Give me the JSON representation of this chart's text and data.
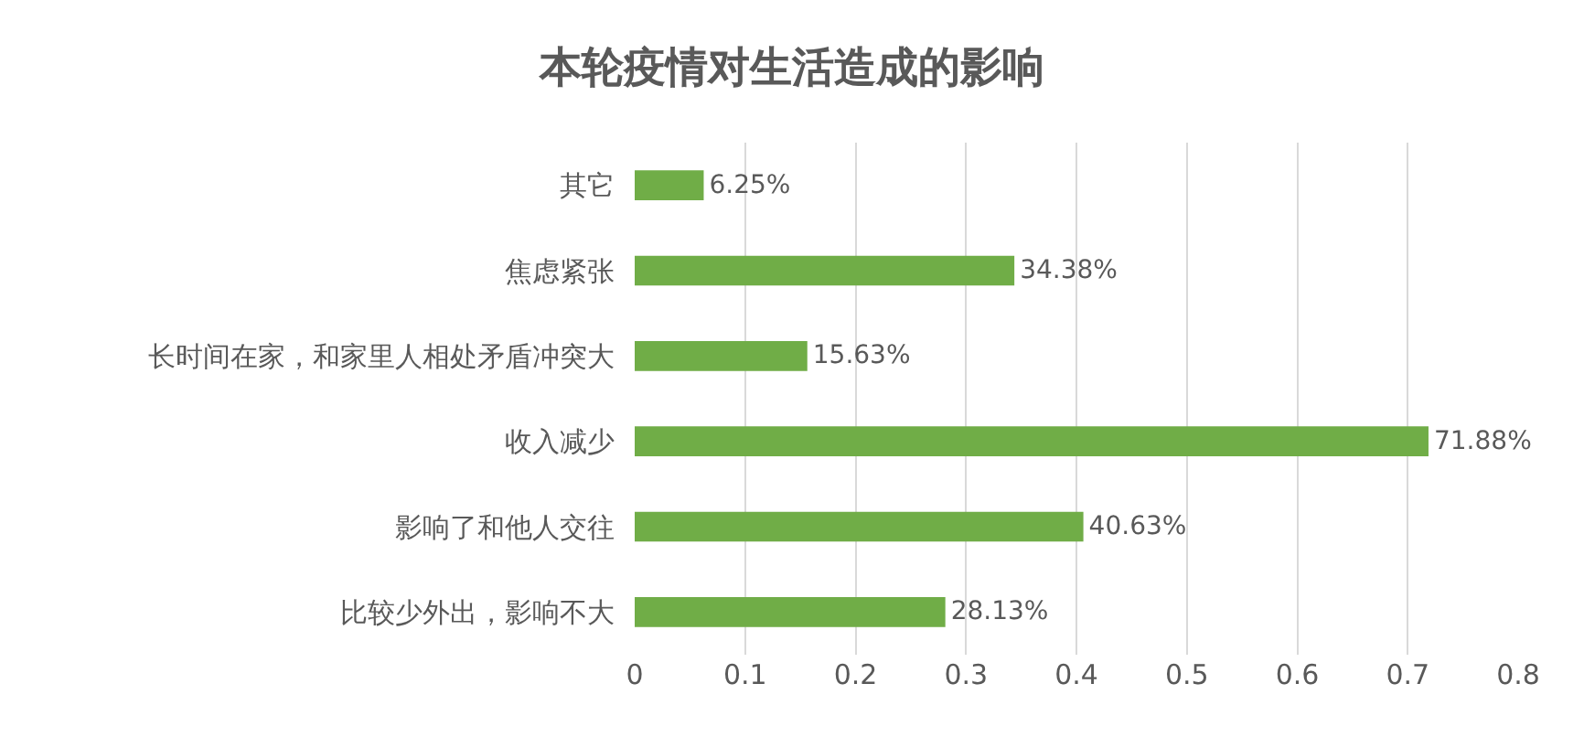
{
  "chart_data": {
    "type": "bar",
    "orientation": "horizontal",
    "title": "本轮疫情对生活造成的影响",
    "categories": [
      "其它",
      "焦虑紧张",
      "长时间在家，和家里人相处矛盾冲突大",
      "收入减少",
      "影响了和他人交往",
      "比较少外出，影响不大"
    ],
    "values": [
      0.0625,
      0.3438,
      0.1563,
      0.7188,
      0.4063,
      0.2813
    ],
    "value_labels": [
      "6.25%",
      "34.38%",
      "15.63%",
      "71.88%",
      "40.63%",
      "28.13%"
    ],
    "color": "#70ad47",
    "xlim": [
      0,
      0.8
    ],
    "xticks": [
      0,
      0.1,
      0.2,
      0.3,
      0.4,
      0.5,
      0.6,
      0.7,
      0.8
    ],
    "grid": "x"
  }
}
